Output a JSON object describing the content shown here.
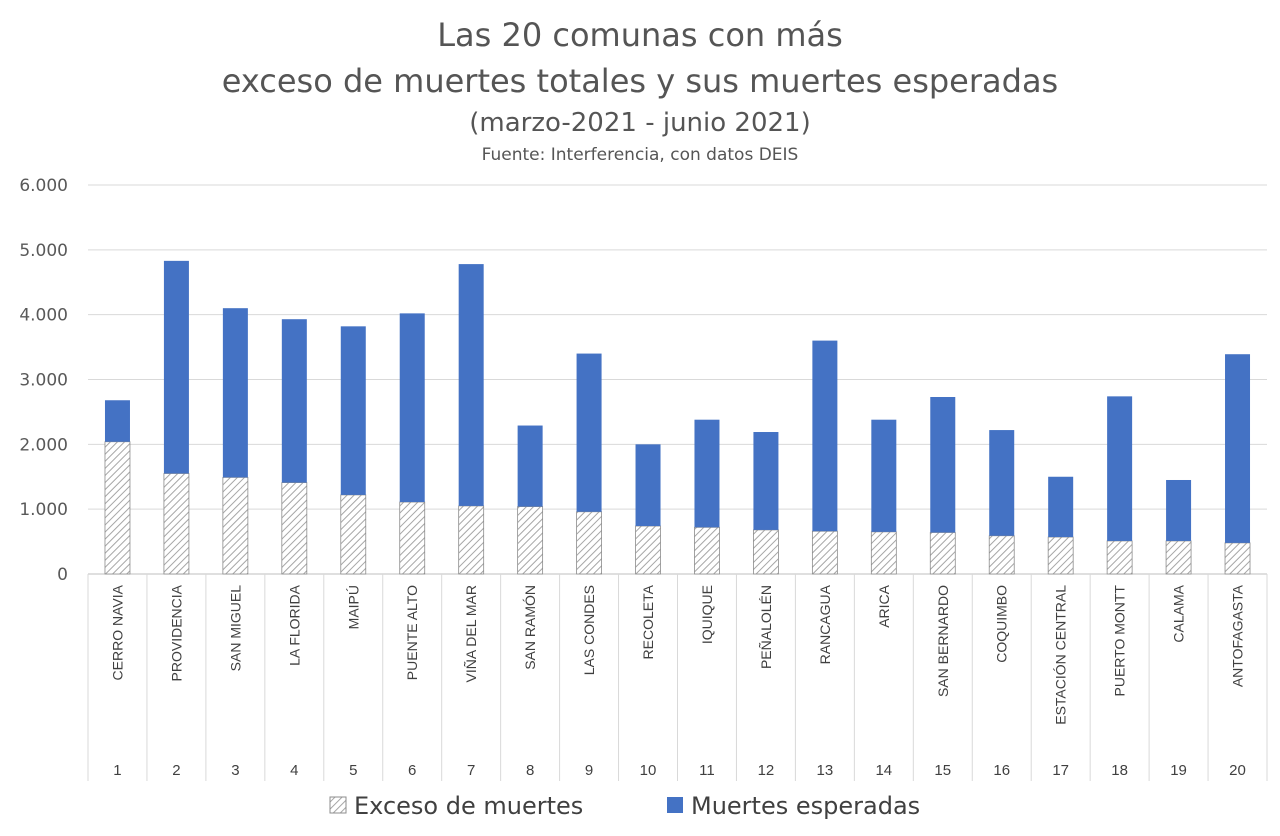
{
  "chart_data": {
    "type": "bar",
    "stacked": true,
    "title": "Las 20 comunas con más",
    "title_line2": "exceso de muertes totales y sus muertes esperadas",
    "subtitle": "(marzo-2021 - junio 2021)",
    "source": "Fuente: Interferencia, con datos DEIS",
    "ylim": [
      0,
      6000
    ],
    "y_ticks": [
      "0",
      "1.000",
      "2.000",
      "3.000",
      "4.000",
      "5.000",
      "6.000"
    ],
    "y_tick_values": [
      0,
      1000,
      2000,
      3000,
      4000,
      5000,
      6000
    ],
    "grid": true,
    "legend_position": "bottom",
    "categories": [
      "CERRO NAVIA",
      "PROVIDENCIA",
      "SAN MIGUEL",
      "LA FLORIDA",
      "MAIPÚ",
      "PUENTE ALTO",
      "VIÑA DEL MAR",
      "SAN RAMÓN",
      "LAS CONDES",
      "RECOLETA",
      "IQUIQUE",
      "PEÑALOLÉN",
      "RANCAGUA",
      "ARICA",
      "SAN BERNARDO",
      "COQUIMBO",
      "ESTACIÓN CENTRAL",
      "PUERTO MONTT",
      "CALAMA",
      "ANTOFAGASTA"
    ],
    "ranks": [
      "1",
      "2",
      "3",
      "4",
      "5",
      "6",
      "7",
      "8",
      "9",
      "10",
      "11",
      "12",
      "13",
      "14",
      "15",
      "16",
      "17",
      "18",
      "19",
      "20"
    ],
    "series": [
      {
        "name": "Exceso de muertes",
        "color": "#ffffff",
        "pattern": "hatch",
        "values": [
          2040,
          1550,
          1490,
          1410,
          1220,
          1110,
          1050,
          1040,
          960,
          740,
          720,
          680,
          660,
          650,
          640,
          590,
          570,
          510,
          510,
          480
        ]
      },
      {
        "name": "Muertes esperadas",
        "color": "#4472c4",
        "values": [
          640,
          3280,
          2610,
          2520,
          2600,
          2910,
          3730,
          1250,
          2440,
          1260,
          1660,
          1510,
          2940,
          1730,
          2090,
          1630,
          930,
          2230,
          940,
          2910
        ]
      }
    ]
  }
}
